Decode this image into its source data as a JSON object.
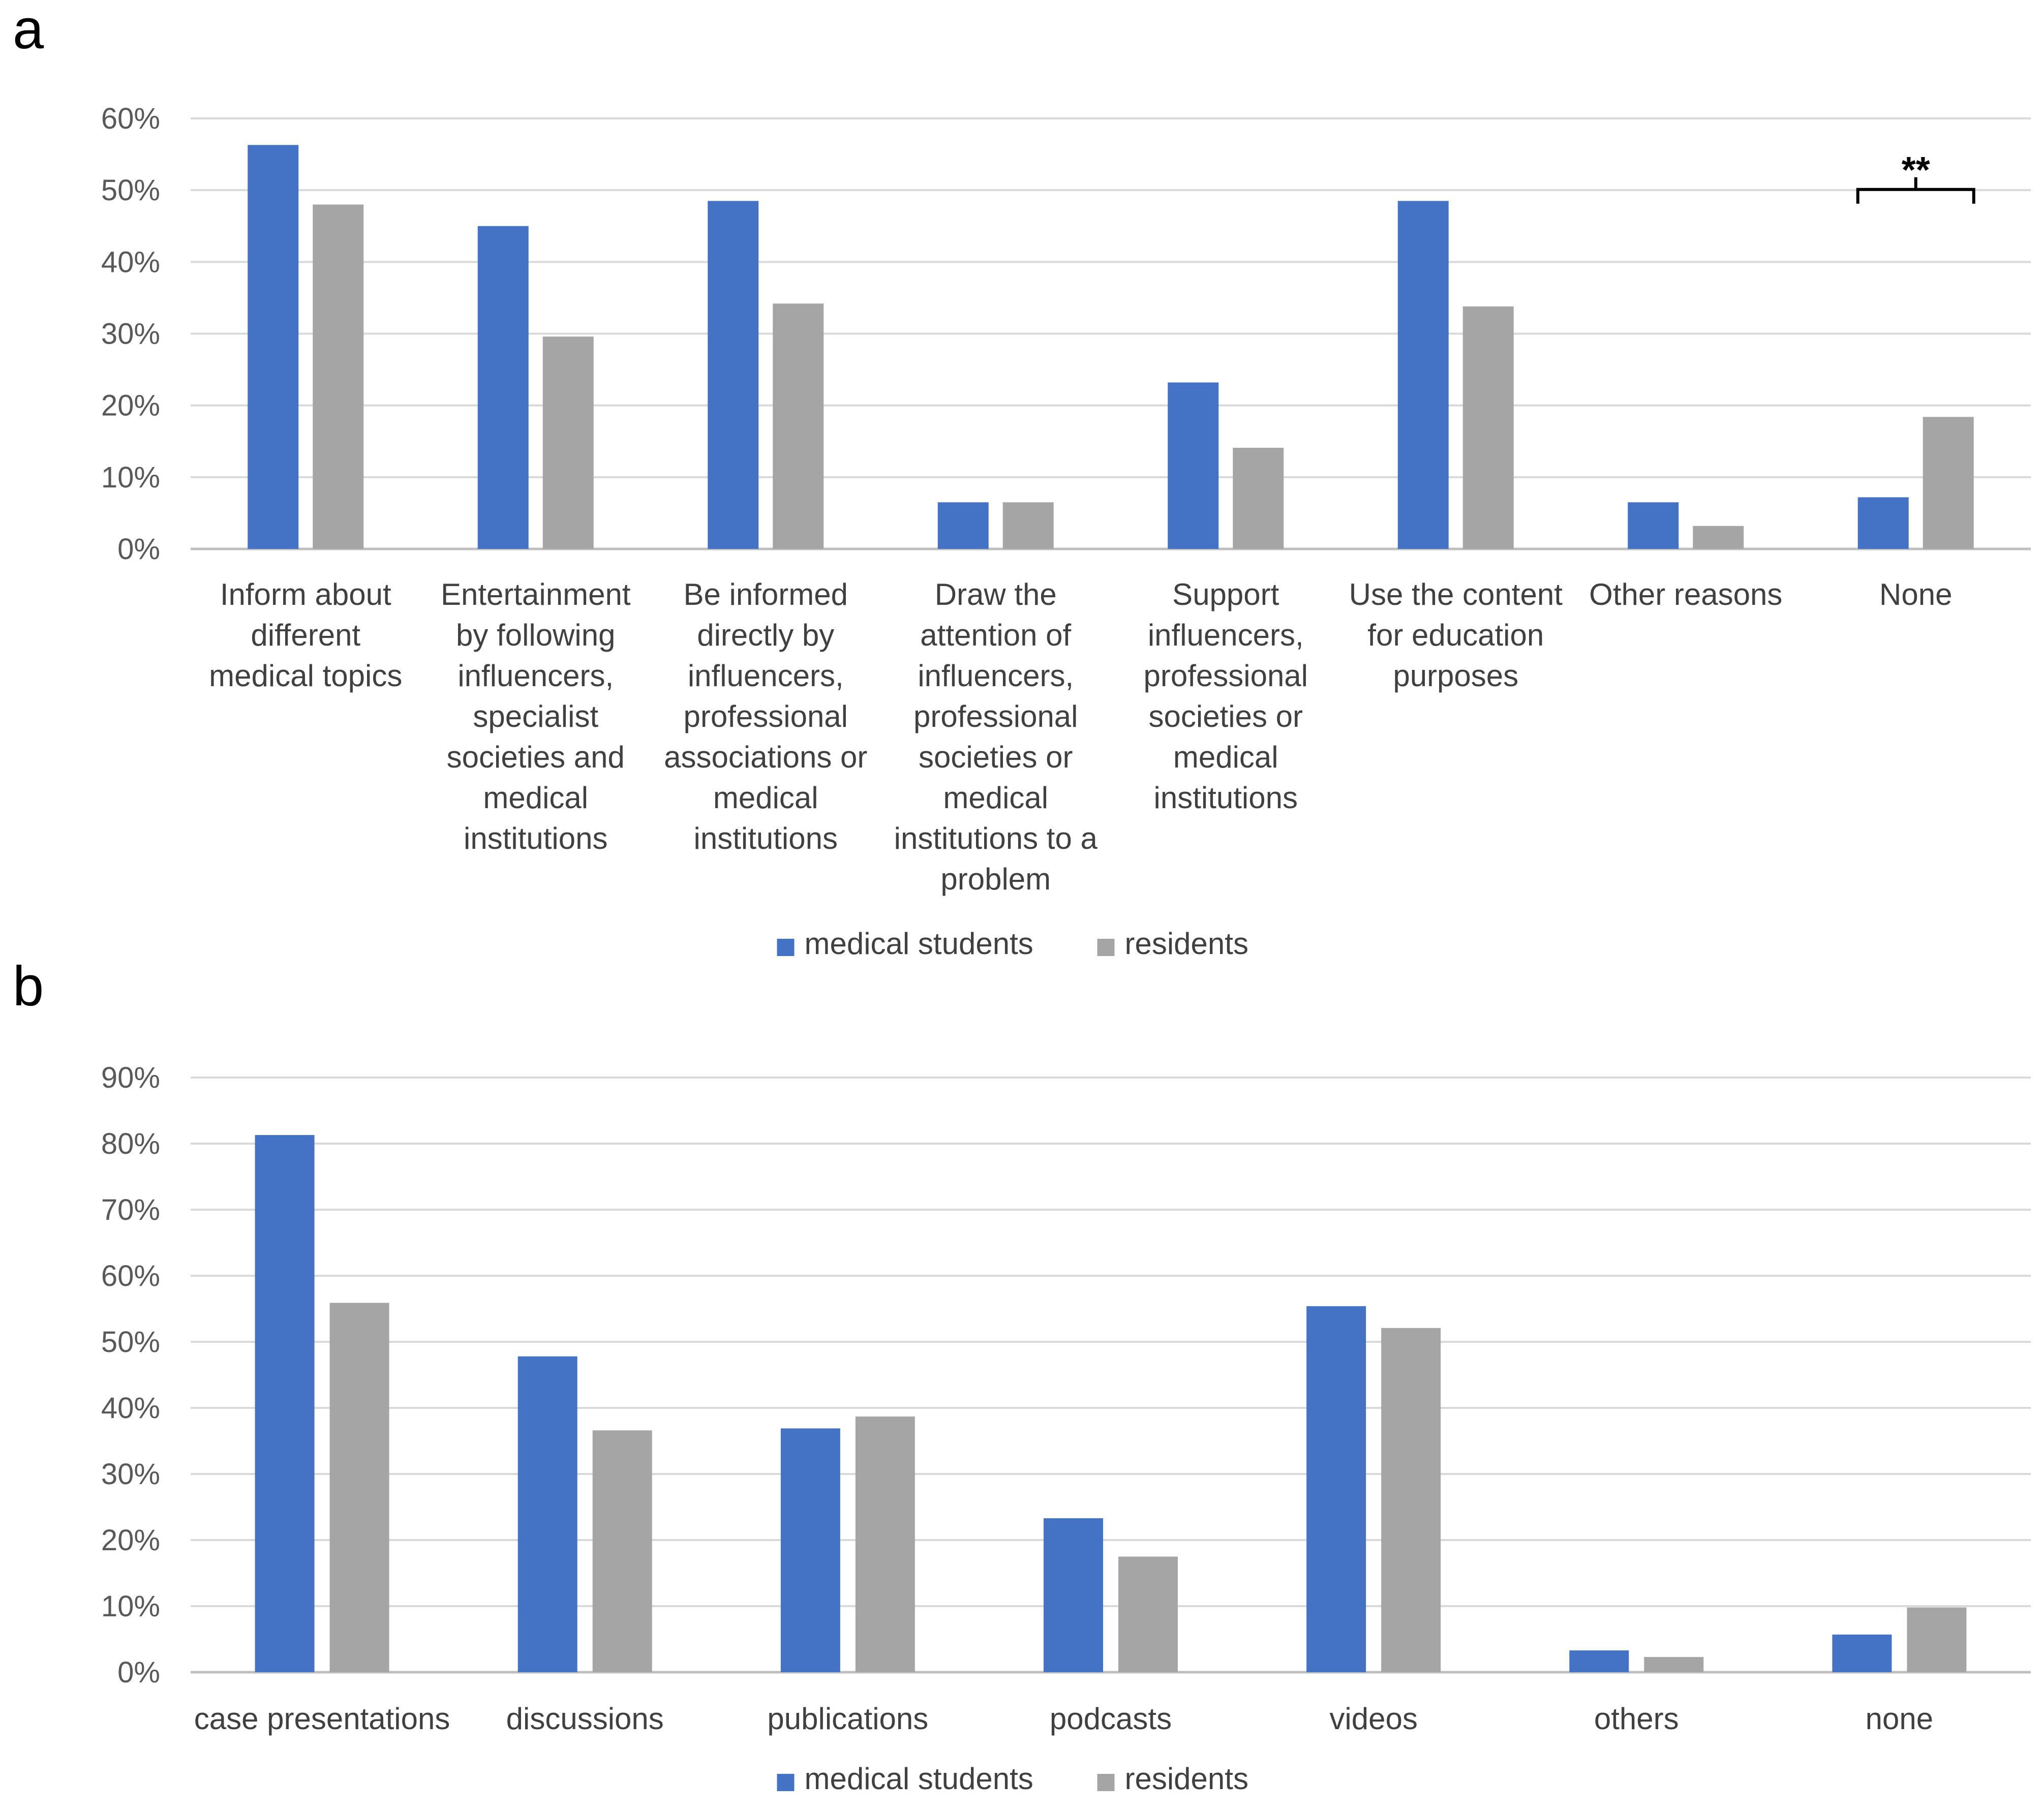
{
  "colors": {
    "series1": "#4472C4",
    "series2": "#A5A5A5",
    "grid": "#D9D9D9",
    "axis": "#BFBFBF"
  },
  "chart_data": [
    {
      "panel": "a",
      "type": "bar",
      "categories": [
        [
          "Inform about",
          "different",
          "medical topics"
        ],
        [
          "Entertainment",
          "by following",
          "influencers,",
          "specialist",
          "societies and",
          "medical",
          "institutions"
        ],
        [
          "Be informed",
          "directly by",
          "influencers,",
          "professional",
          "associations or",
          "medical",
          "institutions"
        ],
        [
          "Draw the",
          "attention of",
          "influencers,",
          "professional",
          "societies or",
          "medical",
          "institutions to a",
          "problem"
        ],
        [
          "Support",
          "influencers,",
          "professional",
          "societies or",
          "medical",
          "institutions"
        ],
        [
          "Use the content",
          "for education",
          "purposes"
        ],
        [
          "Other reasons"
        ],
        [
          "None"
        ]
      ],
      "series": [
        {
          "name": "medical students",
          "values": [
            56.3,
            45.0,
            48.5,
            6.5,
            23.2,
            48.5,
            6.5,
            7.2
          ]
        },
        {
          "name": "residents",
          "values": [
            48.0,
            29.6,
            34.2,
            6.5,
            14.1,
            33.8,
            3.2,
            18.4
          ]
        }
      ],
      "ylim": [
        0,
        60
      ],
      "yticks": [
        0,
        10,
        20,
        30,
        40,
        50,
        60
      ],
      "ytick_labels": [
        "0%",
        "10%",
        "20%",
        "30%",
        "40%",
        "50%",
        "60%"
      ],
      "annotations": [
        {
          "category_index": 7,
          "text": "**"
        }
      ],
      "legend": "bottom-center",
      "grid": true
    },
    {
      "panel": "b",
      "type": "bar",
      "categories": [
        [
          "case presentations"
        ],
        [
          "discussions"
        ],
        [
          "publications"
        ],
        [
          "podcasts"
        ],
        [
          "videos"
        ],
        [
          "others"
        ],
        [
          "none"
        ]
      ],
      "series": [
        {
          "name": "medical students",
          "values": [
            81.3,
            47.8,
            36.9,
            23.3,
            55.4,
            3.3,
            5.7
          ]
        },
        {
          "name": "residents",
          "values": [
            55.9,
            36.6,
            38.7,
            17.5,
            52.1,
            2.3,
            9.8
          ]
        }
      ],
      "ylim": [
        0,
        90
      ],
      "yticks": [
        0,
        10,
        20,
        30,
        40,
        50,
        60,
        70,
        80,
        90
      ],
      "ytick_labels": [
        "0%",
        "10%",
        "20%",
        "30%",
        "40%",
        "50%",
        "60%",
        "70%",
        "80%",
        "90%"
      ],
      "annotations": [],
      "legend": "bottom-center",
      "grid": true
    }
  ]
}
